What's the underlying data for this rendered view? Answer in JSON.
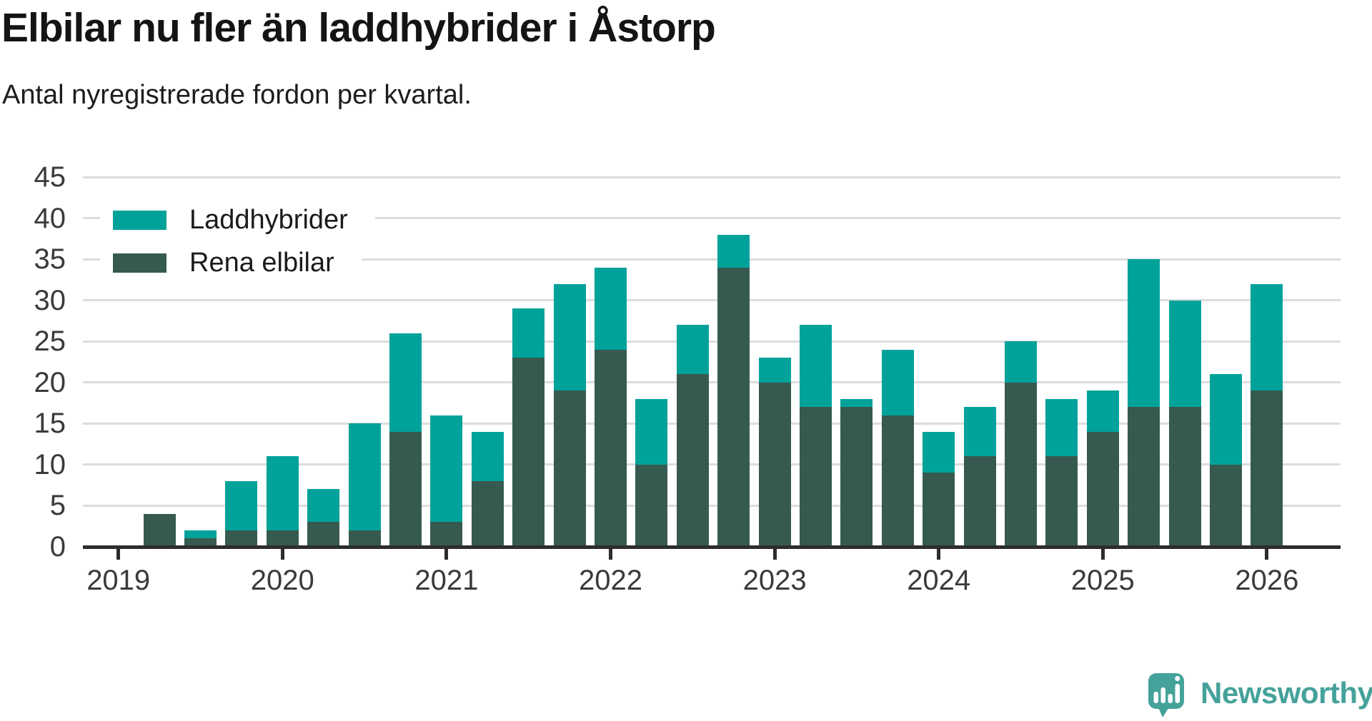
{
  "header": {
    "title": "Elbilar nu fler än laddhybrider i Åstorp",
    "subtitle": "Antal nyregistrerade fordon per kvartal."
  },
  "chart_data": {
    "type": "bar",
    "stacked": true,
    "title": "Elbilar nu fler än laddhybrider i Åstorp",
    "subtitle": "Antal nyregistrerade fordon per kvartal.",
    "ylim": [
      0,
      45
    ],
    "y_ticks": [
      0,
      5,
      10,
      15,
      20,
      25,
      30,
      35,
      40,
      45
    ],
    "grid": true,
    "legend_position": "top-left",
    "stack_bottom_to_top": [
      "Rena elbilar",
      "Laddhybrider"
    ],
    "x_tick_labels": [
      "2019",
      "2020",
      "2021",
      "2022",
      "2023",
      "2024",
      "2025",
      "2026"
    ],
    "categories": [
      "2019 Q1",
      "2019 Q2",
      "2019 Q3",
      "2019 Q4",
      "2020 Q1",
      "2020 Q2",
      "2020 Q3",
      "2020 Q4",
      "2021 Q1",
      "2021 Q2",
      "2021 Q3",
      "2021 Q4",
      "2022 Q1",
      "2022 Q2",
      "2022 Q3",
      "2022 Q4",
      "2023 Q1",
      "2023 Q2",
      "2023 Q3",
      "2023 Q4",
      "2024 Q1",
      "2024 Q2",
      "2024 Q3",
      "2024 Q4",
      "2025 Q1",
      "2025 Q2",
      "2025 Q3",
      "2025 Q4",
      "2026 Q1"
    ],
    "series": [
      {
        "name": "Laddhybrider",
        "color": "#00a29a",
        "values": [
          0,
          0,
          1,
          6,
          9,
          4,
          13,
          12,
          13,
          6,
          6,
          13,
          10,
          8,
          6,
          4,
          3,
          10,
          1,
          8,
          5,
          6,
          5,
          7,
          5,
          18,
          13,
          11,
          13
        ]
      },
      {
        "name": "Rena elbilar",
        "color": "#375a50",
        "values": [
          0,
          4,
          1,
          2,
          2,
          3,
          2,
          14,
          3,
          8,
          23,
          19,
          24,
          10,
          21,
          34,
          20,
          17,
          17,
          16,
          9,
          11,
          20,
          11,
          14,
          17,
          17,
          10,
          19
        ]
      }
    ],
    "totals": [
      0,
      4,
      2,
      8,
      11,
      7,
      15,
      26,
      16,
      14,
      29,
      32,
      34,
      18,
      27,
      38,
      23,
      27,
      18,
      24,
      14,
      17,
      25,
      18,
      19,
      35,
      30,
      21,
      32
    ]
  },
  "branding": {
    "name": "Newsworthy",
    "color": "#45a29a"
  }
}
